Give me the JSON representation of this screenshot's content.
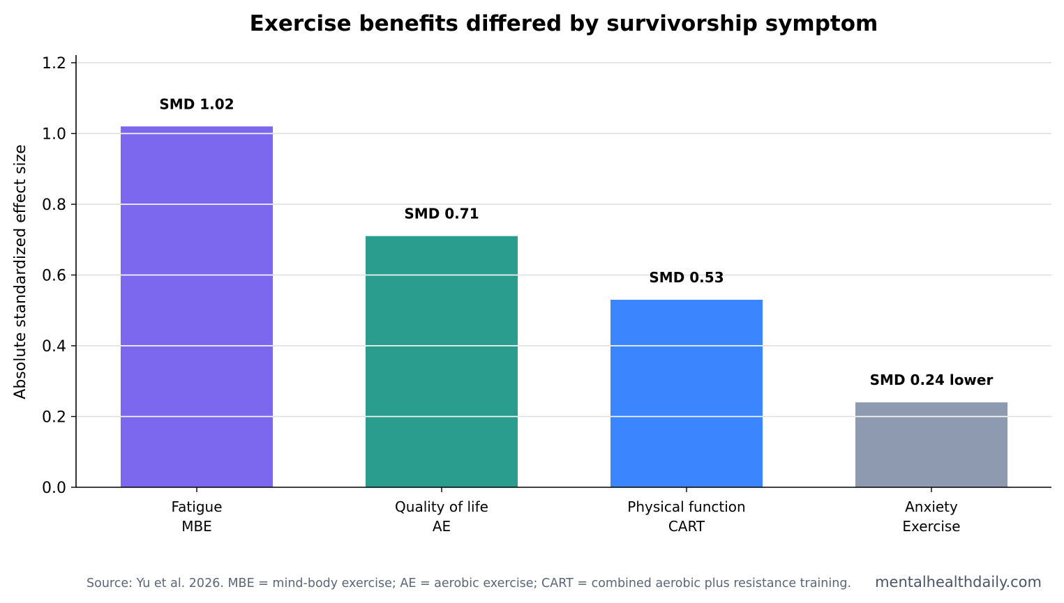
{
  "chart_data": {
    "type": "bar",
    "title": "Exercise benefits differed by survivorship symptom",
    "xlabel": "",
    "ylabel": "Absolute standardized effect size",
    "ylim": [
      0,
      1.2
    ],
    "yticks": [
      "0.0",
      "0.2",
      "0.4",
      "0.6",
      "0.8",
      "1.0",
      "1.2"
    ],
    "ytick_values": [
      0,
      0.2,
      0.4,
      0.6,
      0.8,
      1.0,
      1.2
    ],
    "grid": "horizontal",
    "categories": [
      [
        "Fatigue",
        "MBE"
      ],
      [
        "Quality of life",
        "AE"
      ],
      [
        "Physical function",
        "CART"
      ],
      [
        "Anxiety",
        "Exercise"
      ]
    ],
    "values": [
      1.02,
      0.71,
      0.53,
      0.24
    ],
    "data_labels": [
      "SMD 1.02",
      "SMD 0.71",
      "SMD 0.53",
      "SMD 0.24 lower"
    ],
    "colors": [
      "#7b68ee",
      "#2a9d8f",
      "#3b86ff",
      "#8e9ab0"
    ]
  },
  "footer": {
    "source": "Source: Yu et al. 2026. MBE = mind-body exercise; AE = aerobic exercise; CART = combined aerobic plus resistance training.",
    "watermark": "mentalhealthdaily.com"
  }
}
